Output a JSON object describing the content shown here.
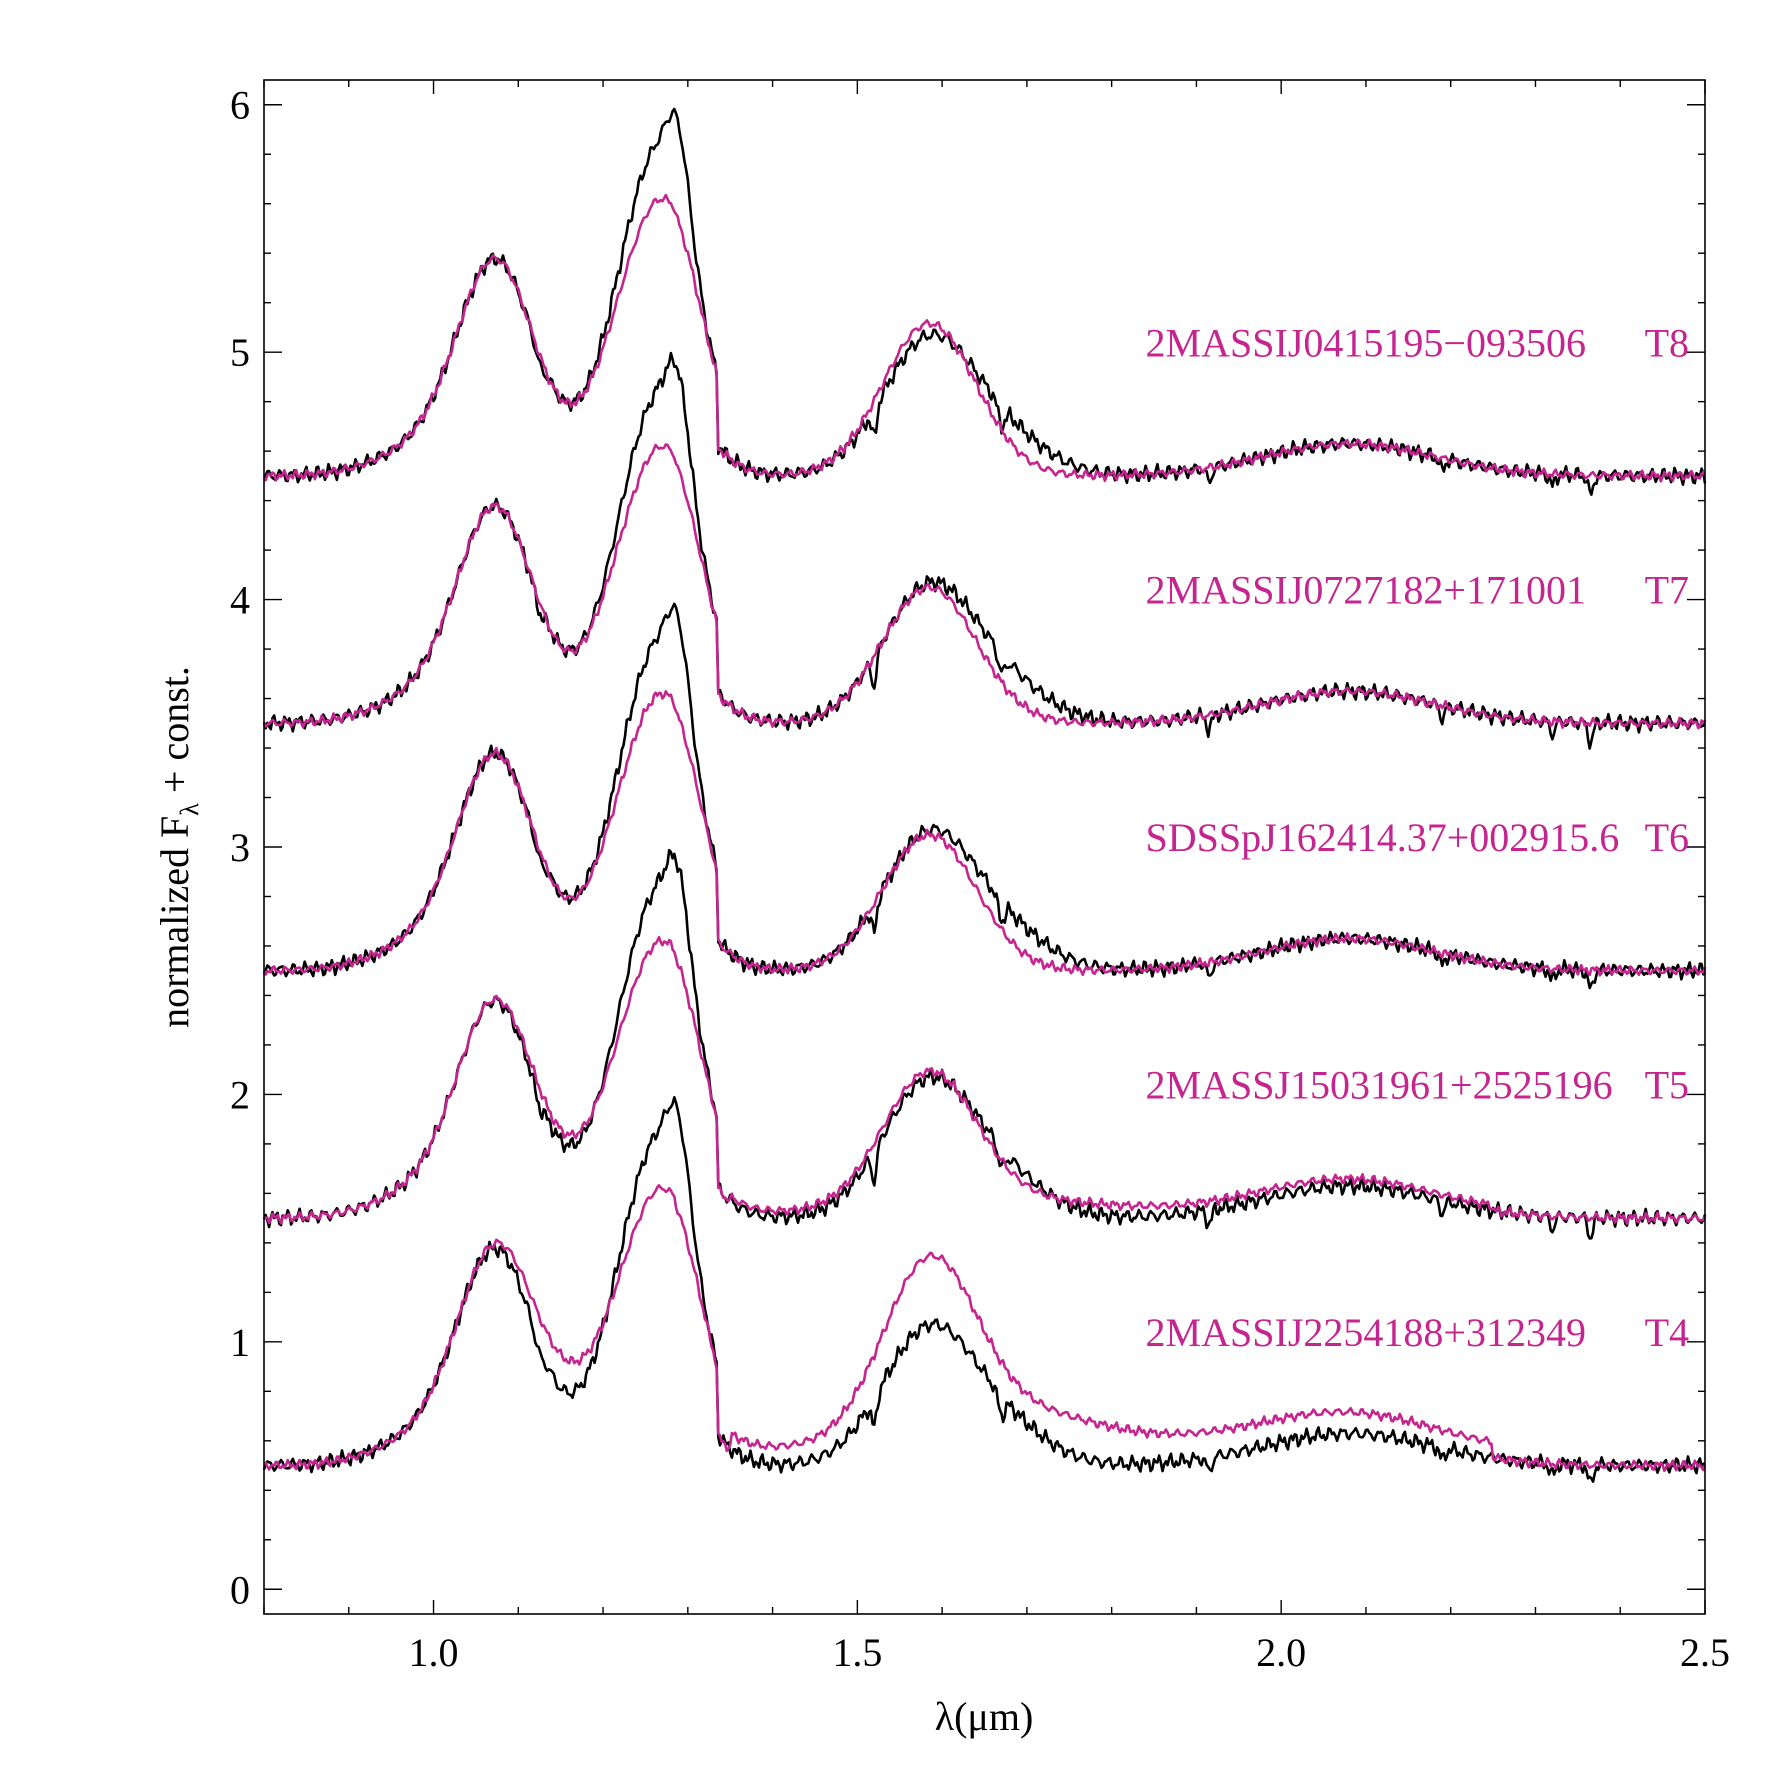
{
  "chart_data": {
    "type": "line",
    "title": "",
    "xlabel": "λ(μm)",
    "ylabel_main": "normalized F",
    "ylabel_sub": "λ",
    "ylabel_rest": " + const.",
    "xlim": [
      0.8,
      2.5
    ],
    "ylim": [
      -0.1,
      6.1
    ],
    "x_ticks": [
      1.0,
      1.5,
      2.0,
      2.5
    ],
    "x_tick_labels": [
      "1.0",
      "1.5",
      "2.0",
      "2.5"
    ],
    "y_ticks": [
      0,
      1,
      2,
      3,
      4,
      5,
      6
    ],
    "y_tick_labels": [
      "0",
      "1",
      "2",
      "3",
      "4",
      "5",
      "6"
    ],
    "observed_color": "#000000",
    "model_color": "#c4258f",
    "spectra": [
      {
        "name": "2MASSIJ0415195−093506",
        "type": "T8",
        "offset": 4.5,
        "label_y": 5.04,
        "model_scale": 1.0,
        "j_shift": -0.05,
        "h_scale": 1.12,
        "red_excess": 0.0
      },
      {
        "name": "2MASSIJ0727182+171001",
        "type": "T7",
        "offset": 3.5,
        "label_y": 4.04,
        "model_scale": 1.0,
        "j_shift": -0.05,
        "h_scale": 1.0,
        "red_excess": 0.0
      },
      {
        "name": "SDSSpJ162414.37+002915.6",
        "type": "T6",
        "offset": 2.5,
        "label_y": 3.04,
        "model_scale": 1.0,
        "j_shift": -0.05,
        "h_scale": 1.0,
        "red_excess": 0.0
      },
      {
        "name": "2MASSJ15031961+2525196",
        "type": "T5",
        "offset": 1.5,
        "label_y": 2.04,
        "model_scale": 1.0,
        "j_shift": -0.05,
        "h_scale": 1.0,
        "red_excess": 0.05
      },
      {
        "name": "2MASSIJ2254188+312349",
        "type": "T4",
        "offset": 0.5,
        "label_y": 1.04,
        "model_scale": 1.0,
        "j_shift": -0.15,
        "h_scale": 1.3,
        "red_excess": 0.15
      }
    ]
  }
}
